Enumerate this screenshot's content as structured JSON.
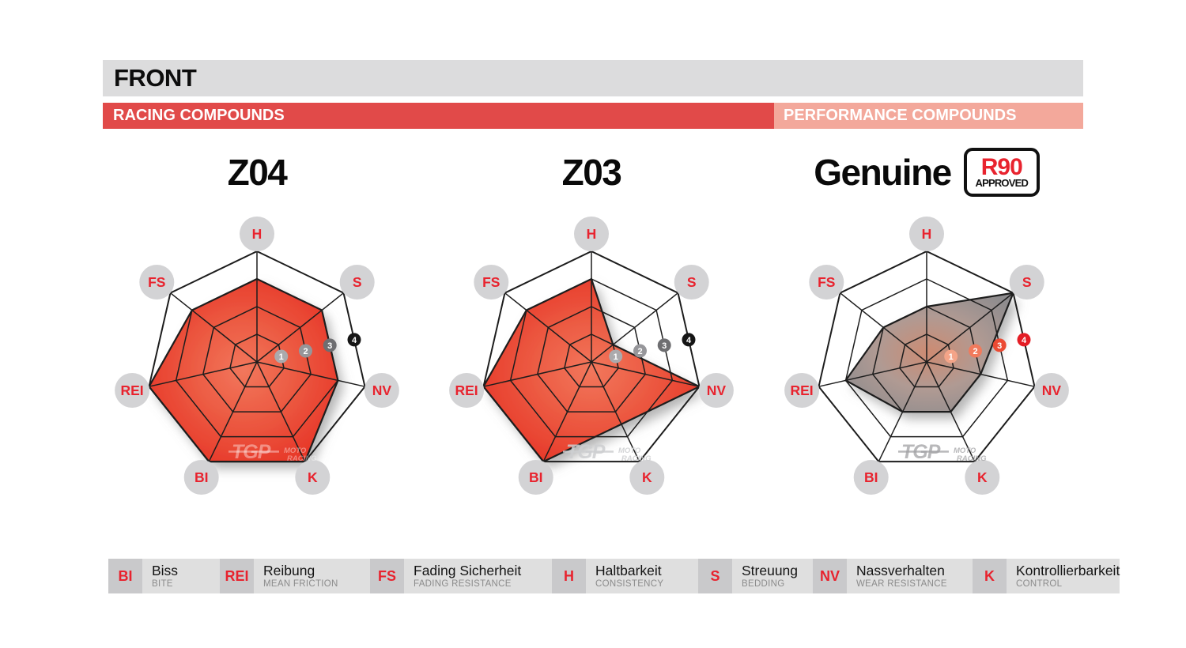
{
  "page": {
    "title": "FRONT"
  },
  "sections": {
    "racing_label": "RACING COMPOUNDS",
    "performance_label": "PERFORMANCE COMPOUNDS"
  },
  "r90_badge": {
    "line1": "R90",
    "line2": "APPROVED"
  },
  "watermark": {
    "brand": "TGP",
    "sub1": "MOTO",
    "sub2": "RACING"
  },
  "legend": {
    "items": [
      {
        "abbr": "BI",
        "de": "Biss",
        "en": "BITE"
      },
      {
        "abbr": "REI",
        "de": "Reibung",
        "en": "MEAN FRICTION"
      },
      {
        "abbr": "FS",
        "de": "Fading Sicherheit",
        "en": "FADING RESISTANCE"
      },
      {
        "abbr": "H",
        "de": "Haltbarkeit",
        "en": "CONSISTENCY"
      },
      {
        "abbr": "S",
        "de": "Streuung",
        "en": "BEDDING"
      },
      {
        "abbr": "NV",
        "de": "Nassverhalten",
        "en": "WEAR RESISTANCE"
      },
      {
        "abbr": "K",
        "de": "Kontrollierbarkeit",
        "en": "CONTROL"
      }
    ]
  },
  "chart_data": {
    "type": "radar",
    "categories": [
      "H",
      "S",
      "NV",
      "K",
      "BI",
      "REI",
      "FS"
    ],
    "scale": {
      "min": 0,
      "max": 4,
      "rings": [
        1,
        2,
        3,
        4
      ]
    },
    "legend_position": "bottom",
    "series": [
      {
        "name": "Z04",
        "group": "racing",
        "palette": "red",
        "values": [
          3,
          3,
          3,
          4,
          4,
          4,
          3
        ],
        "watermark_color": "rgba(255,255,255,0.40)"
      },
      {
        "name": "Z03",
        "group": "racing",
        "palette": "red",
        "values": [
          3,
          1,
          4,
          2.5,
          4,
          4,
          3
        ],
        "watermark_color": "rgba(205,206,208,0.85)"
      },
      {
        "name": "Genuine",
        "group": "performance",
        "palette": "gray",
        "values": [
          2,
          4,
          2,
          2,
          2,
          3,
          2
        ],
        "approved": "R90",
        "watermark_color": "rgba(160,160,163,0.75)"
      }
    ]
  },
  "colors": {
    "accent_red": "#e8232e",
    "racing_bar": "#e14a49",
    "performance_bar": "#f3a89b",
    "header_bar": "#dcdcdd",
    "label_circle": "#d3d3d5",
    "grid": "#1d1d1d",
    "red_fill_center": "#f2775c",
    "red_fill_mid": "#ec5a42",
    "red_fill_edge": "#e63023",
    "gray_fill_center": "#cd8b72",
    "gray_fill_mid": "#b09a93",
    "gray_fill_edge": "#8e8c8e",
    "legend_square": "#c9c9cb",
    "legend_bg": "#dfdfdf",
    "legend_en": "#8b8b8b",
    "ring_badges_gray": [
      "#abaaad",
      "#96969a",
      "#6e6e71",
      "#151515"
    ],
    "ring_badges_red": [
      "#f4a488",
      "#f17a5c",
      "#eb4a33",
      "#e41d25"
    ]
  }
}
